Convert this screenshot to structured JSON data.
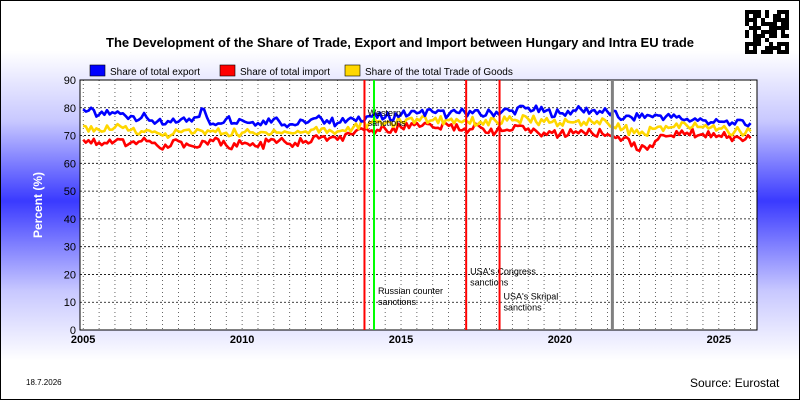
{
  "title": "The Development of the Share of Trade, Export and Import between Hungary and Intra EU trade",
  "date_stamp": "18.7.2026",
  "source": "Source: Eurostat",
  "chart_data": {
    "type": "line",
    "ylabel": "Percent (%)",
    "xlabel": "",
    "ylim": [
      0,
      90
    ],
    "xlim": [
      2004.9,
      2026.2
    ],
    "yticks": [
      0,
      10,
      20,
      30,
      40,
      50,
      60,
      70,
      80,
      90
    ],
    "xticks": [
      2005,
      2010,
      2015,
      2020,
      2025
    ],
    "grid": true,
    "legend_position": "top",
    "series": [
      {
        "name": "Share of total export",
        "color": "#0000ff",
        "points": [
          [
            2005.0,
            79.5
          ],
          [
            2005.5,
            77.5
          ],
          [
            2006.0,
            78.0
          ],
          [
            2006.5,
            77.0
          ],
          [
            2007.0,
            76.5
          ],
          [
            2007.5,
            74.0
          ],
          [
            2008.0,
            75.0
          ],
          [
            2008.5,
            76.5
          ],
          [
            2008.8,
            79.5
          ],
          [
            2009.0,
            74.0
          ],
          [
            2009.5,
            76.0
          ],
          [
            2010.0,
            75.5
          ],
          [
            2010.5,
            74.5
          ],
          [
            2011.0,
            76.0
          ],
          [
            2011.5,
            74.0
          ],
          [
            2012.0,
            74.5
          ],
          [
            2012.5,
            76.0
          ],
          [
            2013.0,
            74.5
          ],
          [
            2013.5,
            76.0
          ],
          [
            2014.0,
            77.0
          ],
          [
            2014.5,
            76.5
          ],
          [
            2015.0,
            77.5
          ],
          [
            2015.5,
            78.0
          ],
          [
            2016.0,
            78.5
          ],
          [
            2016.5,
            77.5
          ],
          [
            2017.0,
            78.5
          ],
          [
            2017.5,
            77.5
          ],
          [
            2018.0,
            78.5
          ],
          [
            2018.5,
            79.0
          ],
          [
            2019.0,
            80.0
          ],
          [
            2019.5,
            78.5
          ],
          [
            2020.0,
            78.0
          ],
          [
            2020.5,
            79.0
          ],
          [
            2021.0,
            79.0
          ],
          [
            2021.5,
            78.5
          ],
          [
            2022.0,
            76.0
          ],
          [
            2022.5,
            76.5
          ],
          [
            2023.0,
            77.5
          ],
          [
            2023.5,
            76.5
          ],
          [
            2024.0,
            76.0
          ],
          [
            2024.5,
            75.5
          ],
          [
            2025.0,
            75.0
          ],
          [
            2025.5,
            74.0
          ],
          [
            2026.0,
            74.5
          ]
        ]
      },
      {
        "name": "Share of total import",
        "color": "#ff0000",
        "points": [
          [
            2005.0,
            68.5
          ],
          [
            2005.5,
            67.5
          ],
          [
            2006.0,
            68.0
          ],
          [
            2006.5,
            67.5
          ],
          [
            2007.0,
            68.0
          ],
          [
            2007.5,
            65.0
          ],
          [
            2008.0,
            68.0
          ],
          [
            2008.5,
            66.0
          ],
          [
            2009.0,
            68.5
          ],
          [
            2009.5,
            66.5
          ],
          [
            2010.0,
            67.0
          ],
          [
            2010.5,
            66.0
          ],
          [
            2011.0,
            68.5
          ],
          [
            2011.5,
            67.0
          ],
          [
            2012.0,
            68.0
          ],
          [
            2012.5,
            69.5
          ],
          [
            2013.0,
            68.5
          ],
          [
            2013.5,
            70.5
          ],
          [
            2014.0,
            71.5
          ],
          [
            2014.5,
            72.5
          ],
          [
            2015.0,
            73.0
          ],
          [
            2015.5,
            74.5
          ],
          [
            2016.0,
            73.0
          ],
          [
            2016.5,
            73.5
          ],
          [
            2017.0,
            72.5
          ],
          [
            2017.5,
            73.0
          ],
          [
            2018.0,
            71.5
          ],
          [
            2018.5,
            72.0
          ],
          [
            2019.0,
            72.5
          ],
          [
            2019.5,
            71.0
          ],
          [
            2020.0,
            70.5
          ],
          [
            2020.5,
            71.5
          ],
          [
            2021.0,
            71.0
          ],
          [
            2021.5,
            70.5
          ],
          [
            2022.0,
            69.0
          ],
          [
            2022.5,
            64.5
          ],
          [
            2023.0,
            68.0
          ],
          [
            2023.5,
            70.0
          ],
          [
            2024.0,
            71.0
          ],
          [
            2024.5,
            70.5
          ],
          [
            2025.0,
            70.0
          ],
          [
            2025.5,
            69.5
          ],
          [
            2026.0,
            69.0
          ]
        ]
      },
      {
        "name": "Share of the total Trade of Goods",
        "color": "#ffd700",
        "points": [
          [
            2005.0,
            73.5
          ],
          [
            2005.5,
            72.0
          ],
          [
            2006.0,
            73.0
          ],
          [
            2006.5,
            72.0
          ],
          [
            2007.0,
            72.0
          ],
          [
            2007.5,
            70.0
          ],
          [
            2008.0,
            71.5
          ],
          [
            2008.5,
            71.0
          ],
          [
            2009.0,
            71.5
          ],
          [
            2009.5,
            71.0
          ],
          [
            2010.0,
            71.0
          ],
          [
            2010.5,
            70.5
          ],
          [
            2011.0,
            72.0
          ],
          [
            2011.5,
            71.0
          ],
          [
            2012.0,
            71.5
          ],
          [
            2012.5,
            72.5
          ],
          [
            2013.0,
            71.5
          ],
          [
            2013.5,
            73.0
          ],
          [
            2014.0,
            74.5
          ],
          [
            2014.5,
            74.5
          ],
          [
            2015.0,
            75.0
          ],
          [
            2015.5,
            76.0
          ],
          [
            2016.0,
            75.5
          ],
          [
            2016.5,
            75.5
          ],
          [
            2017.0,
            75.5
          ],
          [
            2017.5,
            75.0
          ],
          [
            2018.0,
            75.0
          ],
          [
            2018.5,
            75.5
          ],
          [
            2019.0,
            76.0
          ],
          [
            2019.5,
            75.0
          ],
          [
            2020.0,
            74.5
          ],
          [
            2020.5,
            75.0
          ],
          [
            2021.0,
            75.0
          ],
          [
            2021.5,
            74.5
          ],
          [
            2022.0,
            72.5
          ],
          [
            2022.5,
            70.5
          ],
          [
            2023.0,
            72.5
          ],
          [
            2023.5,
            73.0
          ],
          [
            2024.0,
            73.5
          ],
          [
            2024.5,
            73.0
          ],
          [
            2025.0,
            72.5
          ],
          [
            2025.5,
            71.5
          ],
          [
            2026.0,
            71.5
          ]
        ]
      }
    ],
    "events": [
      {
        "x": 2013.85,
        "color": "#ff0000",
        "label": "",
        "label_y": 0
      },
      {
        "x": 2014.15,
        "color": "#00ff00",
        "label": "Russian counter sanctions",
        "label_y": 13
      },
      {
        "x": 2017.05,
        "color": "#ff0000",
        "label": "USA's Congress sanctions",
        "label_y": 20
      },
      {
        "x": 2018.1,
        "color": "#ff0000",
        "label": "USA's Skripal sanctions",
        "label_y": 11
      },
      {
        "x": 2021.65,
        "color": "#808080",
        "label": "",
        "label_y": 0
      }
    ],
    "annotations": [
      {
        "x": 2013.95,
        "y": 77,
        "text": "Western sanctions"
      }
    ]
  }
}
